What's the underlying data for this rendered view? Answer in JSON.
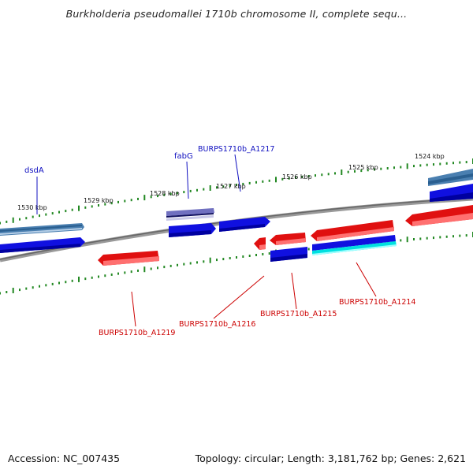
{
  "header": {
    "title": "Burkholderia pseudomallei 1710b chromosome II, complete sequ..."
  },
  "map": {
    "colors": {
      "backbone": "#808080",
      "forward_gene": "#1010e0",
      "forward_gene_shade": "#4a7fb0",
      "reverse_gene": "#e01010",
      "reverse_gene_shade": "#ff7070",
      "cyan_gene": "#00e0e0",
      "purple_gene": "#7070c0",
      "tick": "#228822",
      "label_forward": "#1010c0",
      "label_reverse": "#cc0000"
    },
    "kbp_ticks": [
      "1530 kbp",
      "1529 kbp",
      "1528 kbp",
      "1527 kbp",
      "1526 kbp",
      "1525 kbp",
      "1524 kbp"
    ],
    "forward_labels": [
      "dsdA",
      "fabG",
      "BURPS1710b_A1217"
    ],
    "reverse_labels": [
      "BURPS1710b_A1219",
      "BURPS1710b_A1216",
      "BURPS1710b_A1215",
      "BURPS1710b_A1214"
    ]
  },
  "footer": {
    "accession": "Accession: NC_007435",
    "topology": "Topology: circular; Length: 3,181,762 bp; Genes: 2,621"
  }
}
